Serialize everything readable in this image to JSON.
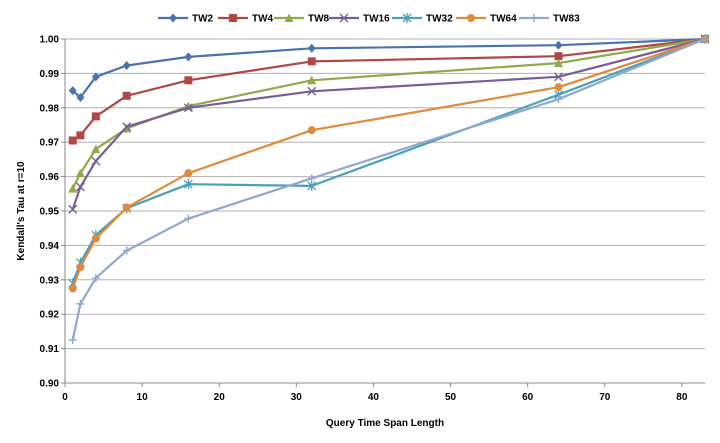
{
  "chart_data": {
    "type": "line",
    "xlabel": "Query Time Span Length",
    "ylabel": "Kendall's Tau at r=10",
    "xlim": [
      0,
      83
    ],
    "ylim": [
      0.9,
      1.0
    ],
    "x_ticks": [
      0,
      10,
      20,
      30,
      40,
      50,
      60,
      70,
      80
    ],
    "y_ticks": [
      0.9,
      0.91,
      0.92,
      0.93,
      0.94,
      0.95,
      0.96,
      0.97,
      0.98,
      0.99,
      1.0
    ],
    "x_tick_labels": [
      "0",
      "10",
      "20",
      "30",
      "40",
      "50",
      "60",
      "70",
      "80"
    ],
    "y_tick_labels": [
      "0.90",
      "0.91",
      "0.92",
      "0.93",
      "0.94",
      "0.95",
      "0.96",
      "0.97",
      "0.98",
      "0.99",
      "1.00"
    ],
    "grid": "horizontal",
    "legend_position": "top",
    "series": [
      {
        "name": "TW2",
        "color": "#4a72b0",
        "marker": "diamond",
        "x": [
          1,
          2,
          4,
          8,
          16,
          32,
          64,
          83
        ],
        "y": [
          0.985,
          0.983,
          0.989,
          0.9923,
          0.9948,
          0.9973,
          0.9982,
          1.0
        ]
      },
      {
        "name": "TW4",
        "color": "#b04744",
        "marker": "square",
        "x": [
          1,
          2,
          4,
          8,
          16,
          32,
          64,
          83
        ],
        "y": [
          0.9705,
          0.972,
          0.9775,
          0.9835,
          0.988,
          0.9935,
          0.995,
          1.0
        ]
      },
      {
        "name": "TW8",
        "color": "#8eaa4a",
        "marker": "triangle",
        "x": [
          1,
          2,
          4,
          8,
          16,
          32,
          64,
          83
        ],
        "y": [
          0.9565,
          0.961,
          0.968,
          0.974,
          0.9805,
          0.988,
          0.993,
          1.0
        ]
      },
      {
        "name": "TW16",
        "color": "#7a5c97",
        "marker": "x",
        "x": [
          1,
          2,
          4,
          8,
          16,
          32,
          64,
          83
        ],
        "y": [
          0.9505,
          0.957,
          0.9645,
          0.9745,
          0.98,
          0.9848,
          0.989,
          1.0
        ]
      },
      {
        "name": "TW32",
        "color": "#4aa0b8",
        "marker": "star",
        "x": [
          1,
          2,
          4,
          8,
          16,
          32,
          64,
          83
        ],
        "y": [
          0.929,
          0.935,
          0.943,
          0.9508,
          0.9578,
          0.9573,
          0.9838,
          1.0
        ]
      },
      {
        "name": "TW64",
        "color": "#e08a3c",
        "marker": "circle",
        "x": [
          1,
          2,
          4,
          8,
          16,
          32,
          64,
          83
        ],
        "y": [
          0.9275,
          0.9337,
          0.942,
          0.951,
          0.961,
          0.9735,
          0.986,
          1.0
        ]
      },
      {
        "name": "TW83",
        "color": "#90a8d0",
        "marker": "plus",
        "x": [
          1,
          2,
          4,
          8,
          16,
          32,
          64,
          83
        ],
        "y": [
          0.9125,
          0.923,
          0.9305,
          0.9385,
          0.9478,
          0.9595,
          0.9825,
          1.0
        ]
      }
    ]
  }
}
